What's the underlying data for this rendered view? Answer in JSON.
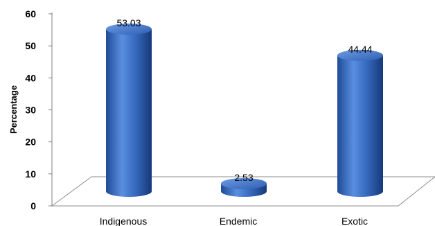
{
  "chart_data": {
    "type": "bar",
    "categories": [
      "Indigenous",
      "Endemic",
      "Exotic"
    ],
    "values": [
      53.03,
      2.53,
      44.44
    ],
    "data_labels": [
      "53.03",
      "2.53",
      "44.44"
    ],
    "title": "",
    "xlabel": "",
    "ylabel": "Percentage",
    "ylim": [
      0,
      60
    ],
    "yticks": [
      "0",
      "10",
      "20",
      "30",
      "40",
      "50",
      "60"
    ],
    "style": "3d-cylinder",
    "bar_color": "#3a6fc4",
    "grid": false,
    "legend": "none"
  }
}
